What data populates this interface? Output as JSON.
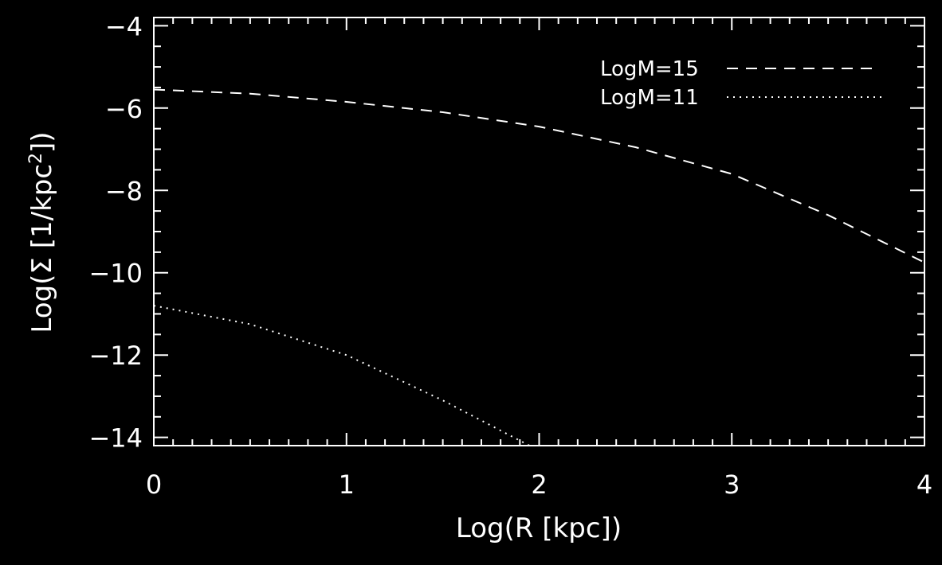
{
  "chart_data": {
    "type": "line",
    "xlabel": "Log(R [kpc])",
    "ylabel_main": "Log(Σ [1/kpc",
    "ylabel_sup": "2",
    "ylabel_end": "])",
    "xlim": [
      0,
      4
    ],
    "ylim": [
      -14.2,
      -3.8
    ],
    "xticks": [
      0,
      1,
      2,
      3,
      4
    ],
    "xtick_labels": [
      "0",
      "1",
      "2",
      "3",
      "4"
    ],
    "yticks": [
      -4,
      -6,
      -8,
      -10,
      -12,
      -14
    ],
    "ytick_labels": [
      "−4",
      "−6",
      "−8",
      "−10",
      "−12",
      "−14"
    ],
    "legend_position": "top-right",
    "grid": false,
    "colors": {
      "background": "#000000",
      "foreground": "#ffffff"
    },
    "series": [
      {
        "name": "LogM=15",
        "style": "dashed",
        "x": [
          0,
          0.5,
          1.0,
          1.5,
          2.0,
          2.5,
          3.0,
          3.5,
          4.0
        ],
        "y": [
          -5.55,
          -5.65,
          -5.85,
          -6.1,
          -6.45,
          -6.95,
          -7.6,
          -8.6,
          -9.75
        ]
      },
      {
        "name": "LogM=11",
        "style": "dotted",
        "x": [
          0.0,
          0.5,
          1.0,
          1.5,
          1.95
        ],
        "y": [
          -10.8,
          -11.25,
          -12.0,
          -13.1,
          -14.2
        ]
      }
    ]
  }
}
